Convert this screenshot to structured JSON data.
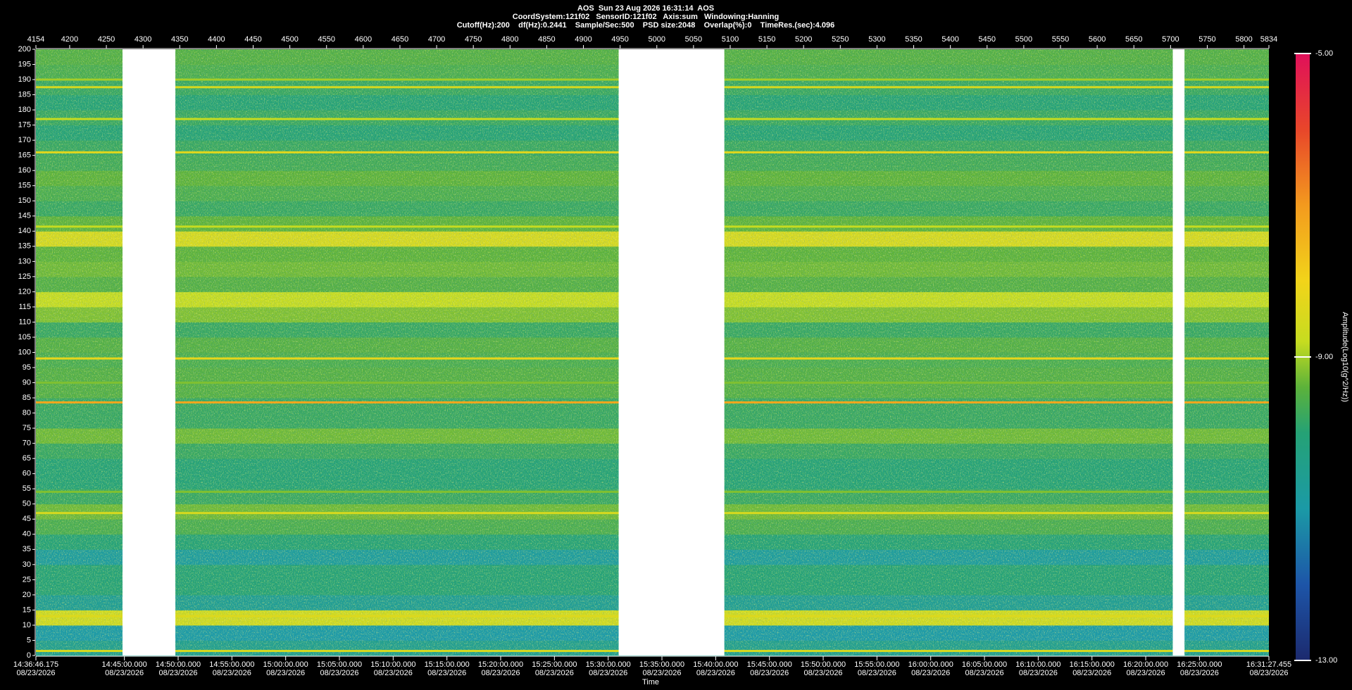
{
  "chart_data": {
    "type": "spectrogram",
    "title": "AOS  Sun 23 Aug 2026 16:31:14  AOS",
    "subtitle": "CoordSystem:121f02   SensorID:121f02   Axis:sum   Windowing:Hanning",
    "subtitle2": "Cutoff(Hz):200    df(Hz):0.2441    Sample/Sec:500    PSD size:2048    Overlap(%):0    TimeRes.(sec):4.096",
    "xlabel": "Time",
    "xlim": [
      4154,
      5834
    ],
    "xticks": [
      4154,
      4200,
      4250,
      4300,
      4350,
      4400,
      4450,
      4500,
      4550,
      4600,
      4650,
      4700,
      4750,
      4800,
      4850,
      4900,
      4950,
      5000,
      5050,
      5100,
      5150,
      5200,
      5250,
      5300,
      5350,
      5400,
      5450,
      5500,
      5550,
      5600,
      5650,
      5700,
      5750,
      5800,
      5834
    ],
    "timeticks": [
      {
        "value": 4154,
        "time": "14:36:46.175",
        "date": "08/23/2026"
      },
      {
        "value": 4274.56,
        "time": "14:45:00.000",
        "date": "08/23/2026"
      },
      {
        "value": 4347.8,
        "time": "14:50:00.000",
        "date": "08/23/2026"
      },
      {
        "value": 4421.05,
        "time": "14:55:00.000",
        "date": "08/23/2026"
      },
      {
        "value": 4494.29,
        "time": "15:00:00.000",
        "date": "08/23/2026"
      },
      {
        "value": 4567.53,
        "time": "15:05:00.000",
        "date": "08/23/2026"
      },
      {
        "value": 4640.77,
        "time": "15:10:00.000",
        "date": "08/23/2026"
      },
      {
        "value": 4714.02,
        "time": "15:15:00.000",
        "date": "08/23/2026"
      },
      {
        "value": 4787.26,
        "time": "15:20:00.000",
        "date": "08/23/2026"
      },
      {
        "value": 4860.5,
        "time": "15:25:00.000",
        "date": "08/23/2026"
      },
      {
        "value": 4933.74,
        "time": "15:30:00.000",
        "date": "08/23/2026"
      },
      {
        "value": 5006.98,
        "time": "15:35:00.000",
        "date": "08/23/2026"
      },
      {
        "value": 5080.22,
        "time": "15:40:00.000",
        "date": "08/23/2026"
      },
      {
        "value": 5153.46,
        "time": "15:45:00.000",
        "date": "08/23/2026"
      },
      {
        "value": 5226.7,
        "time": "15:50:00.000",
        "date": "08/23/2026"
      },
      {
        "value": 5299.95,
        "time": "15:55:00.000",
        "date": "08/23/2026"
      },
      {
        "value": 5373.19,
        "time": "16:00:00.000",
        "date": "08/23/2026"
      },
      {
        "value": 5446.43,
        "time": "16:05:00.000",
        "date": "08/23/2026"
      },
      {
        "value": 5519.67,
        "time": "16:10:00.000",
        "date": "08/23/2026"
      },
      {
        "value": 5592.91,
        "time": "16:15:00.000",
        "date": "08/23/2026"
      },
      {
        "value": 5666.15,
        "time": "16:20:00.000",
        "date": "08/23/2026"
      },
      {
        "value": 5739.4,
        "time": "16:25:00.000",
        "date": "08/23/2026"
      },
      {
        "value": 5834,
        "time": "16:31:27.455",
        "date": "08/23/2026"
      }
    ],
    "ylim": [
      0,
      200
    ],
    "yticks": [
      0,
      5,
      10,
      15,
      20,
      25,
      30,
      35,
      40,
      45,
      50,
      55,
      60,
      65,
      70,
      75,
      80,
      85,
      90,
      95,
      100,
      105,
      110,
      115,
      120,
      125,
      130,
      135,
      140,
      145,
      150,
      155,
      160,
      165,
      170,
      175,
      180,
      185,
      190,
      195,
      200
    ],
    "levels": [
      -10.5,
      -11,
      -8.6,
      -10.6,
      -10,
      -10,
      -10.8,
      -10,
      -9.6,
      -9.3,
      -9.8,
      -10,
      -10,
      -9.8,
      -9.3,
      -9.8,
      -9.8,
      -9.5,
      -9.5,
      -9.6,
      -9.5,
      -9.8,
      -9.2,
      -8.8,
      -9.5,
      -9.3,
      -9.4,
      -8.5,
      -9.4,
      -9.8,
      -9.6,
      -9.4,
      -9.7,
      -9.8,
      -10,
      -9.8,
      -10,
      -9.8,
      -9.6,
      -9.5
    ],
    "lines": [
      {
        "freq": 1.5,
        "level": -8.5
      },
      {
        "freq": 13,
        "level": -8.4
      },
      {
        "freq": 47,
        "level": -8.5
      },
      {
        "freq": 54,
        "level": -9.2
      },
      {
        "freq": 83.5,
        "level": -7.2
      },
      {
        "freq": 90,
        "level": -9.2
      },
      {
        "freq": 98,
        "level": -8.2
      },
      {
        "freq": 141.5,
        "level": -8.8
      },
      {
        "freq": 166,
        "level": -8.3
      },
      {
        "freq": 177,
        "level": -8.8
      },
      {
        "freq": 187.5,
        "level": -8.5
      },
      {
        "freq": 190,
        "level": -9
      }
    ],
    "gaps": [
      [
        4272,
        4344
      ],
      [
        4948,
        5092
      ],
      [
        5703,
        5719
      ]
    ],
    "colorbar": {
      "label": "Amplitude(Log10(g^2/Hz))",
      "lim": [
        -13,
        -5
      ],
      "ticks": [
        {
          "value": -5,
          "label": "-5.00"
        },
        {
          "value": -9,
          "label": "-9.00"
        },
        {
          "value": -13,
          "label": "-13.00"
        }
      ]
    },
    "colormap": [
      [
        -13,
        "#1c2a6e"
      ],
      [
        -12,
        "#1d55a8"
      ],
      [
        -11,
        "#1b9aa6"
      ],
      [
        -10,
        "#25a275"
      ],
      [
        -9.4,
        "#5cb23a"
      ],
      [
        -8.8,
        "#c6dc20"
      ],
      [
        -8,
        "#f2d41a"
      ],
      [
        -7,
        "#f39a1e"
      ],
      [
        -6,
        "#e8462a"
      ],
      [
        -5,
        "#e0105a"
      ]
    ]
  }
}
